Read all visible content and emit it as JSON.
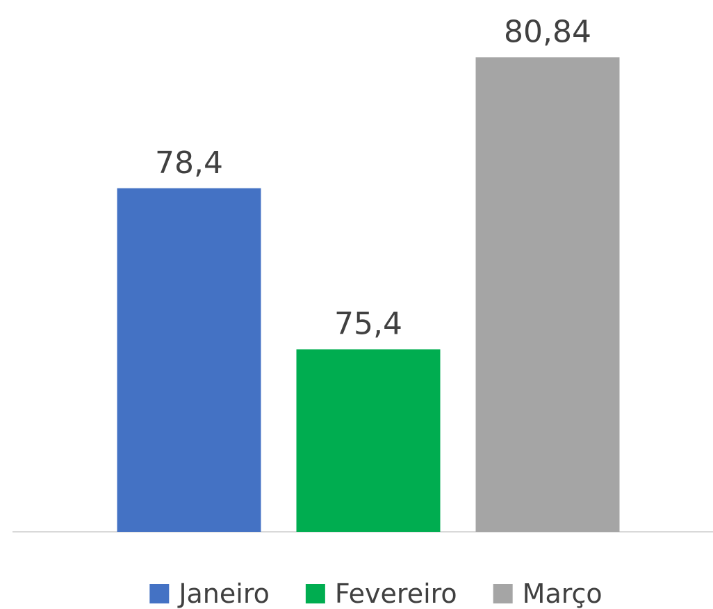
{
  "chart_data": {
    "type": "bar",
    "categories": [
      null
    ],
    "series": [
      {
        "name": "Janeiro",
        "color": "#4472c4",
        "values": [
          78.4
        ],
        "value_labels": [
          "78,4"
        ]
      },
      {
        "name": "Fevereiro",
        "color": "#00ad50",
        "values": [
          75.4
        ],
        "value_labels": [
          "75,4"
        ]
      },
      {
        "name": "Março",
        "color": "#a5a5a5",
        "values": [
          80.84
        ],
        "value_labels": [
          "80,84"
        ]
      }
    ],
    "ylim": [
      72,
      81
    ],
    "legend": "bottom"
  }
}
